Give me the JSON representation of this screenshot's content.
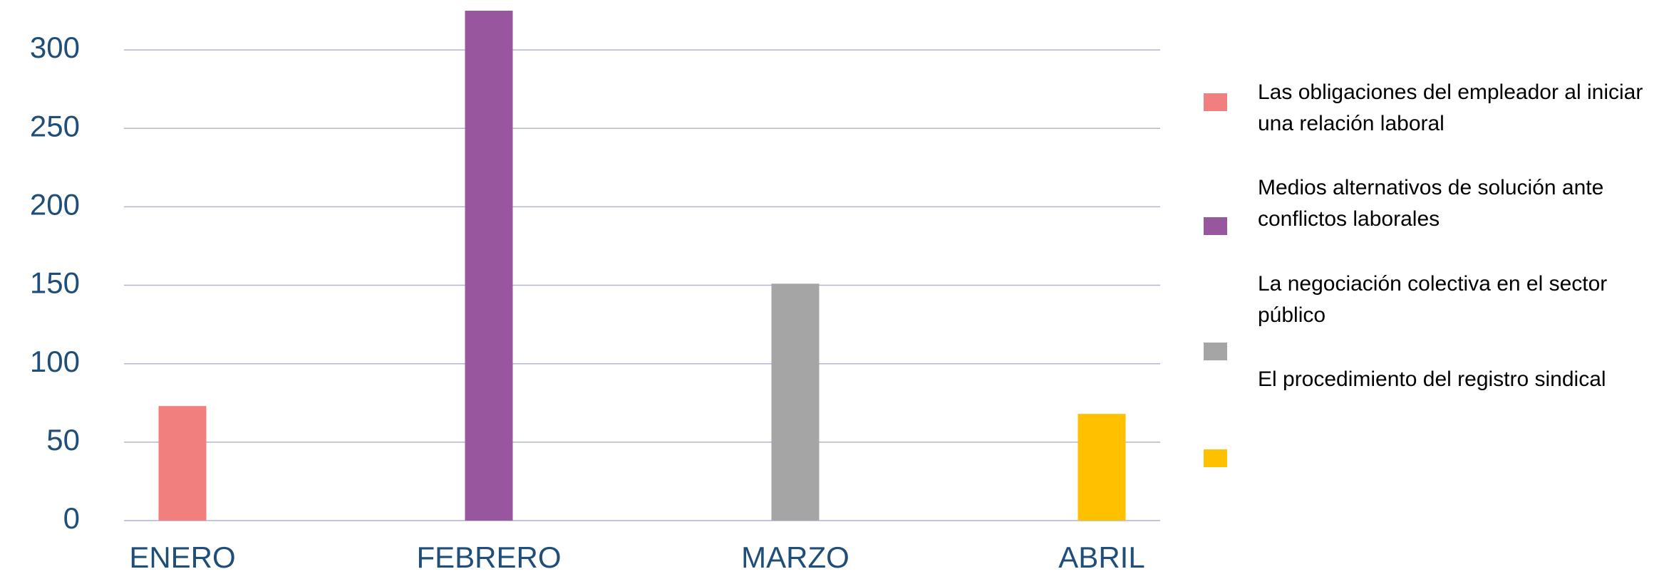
{
  "chart_data": {
    "type": "bar",
    "categories": [
      "ENERO",
      "FEBRERO",
      "MARZO",
      "ABRIL"
    ],
    "series": [
      {
        "name": "Las obligaciones del  empleador al iniciar una relación laboral",
        "color": "#f07f7d",
        "values": [
          73,
          null,
          null,
          null
        ]
      },
      {
        "name": "Medios alternativos de  solución ante conflictos laborales",
        "color": "#97569d",
        "values": [
          null,
          325,
          null,
          null
        ]
      },
      {
        "name": "La negociación colectiva en el sector público",
        "color": "#a5a5a5",
        "values": [
          null,
          null,
          151,
          null
        ]
      },
      {
        "name": "El procedimiento del registro sindical",
        "color": "#ffc000",
        "values": [
          null,
          null,
          null,
          68
        ]
      }
    ],
    "ylim": [
      0,
      330
    ],
    "yticks": [
      0,
      50,
      100,
      150,
      200,
      250,
      300
    ],
    "grid": true
  }
}
